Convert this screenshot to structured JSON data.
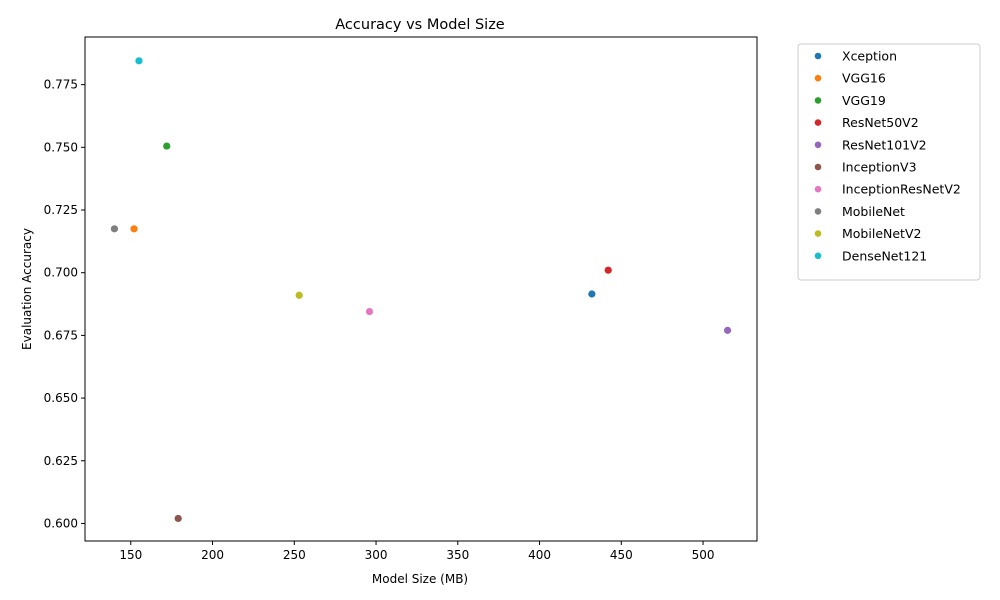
{
  "chart_data": {
    "type": "scatter",
    "title": "Accuracy vs Model Size",
    "xlabel": "Model Size (MB)",
    "ylabel": "Evaluation Accuracy",
    "xlim": [
      122,
      533
    ],
    "ylim": [
      0.593,
      0.794
    ],
    "xticks": [
      150,
      200,
      250,
      300,
      350,
      400,
      450,
      500
    ],
    "yticks": [
      0.6,
      0.625,
      0.65,
      0.675,
      0.7,
      0.725,
      0.75,
      0.775
    ],
    "grid": false,
    "legend_position": "outside-right-top",
    "series": [
      {
        "name": "Xception",
        "color": "#1f77b4",
        "x": 432,
        "y": 0.6915
      },
      {
        "name": "VGG16",
        "color": "#ff7f0e",
        "x": 152,
        "y": 0.7175
      },
      {
        "name": "VGG19",
        "color": "#2ca02c",
        "x": 172,
        "y": 0.7505
      },
      {
        "name": "ResNet50V2",
        "color": "#d62728",
        "x": 442,
        "y": 0.701
      },
      {
        "name": "ResNet101V2",
        "color": "#9467bd",
        "x": 515,
        "y": 0.677
      },
      {
        "name": "InceptionV3",
        "color": "#8c564b",
        "x": 179,
        "y": 0.602
      },
      {
        "name": "InceptionResNetV2",
        "color": "#e377c2",
        "x": 296,
        "y": 0.6845
      },
      {
        "name": "MobileNet",
        "color": "#7f7f7f",
        "x": 140,
        "y": 0.7175
      },
      {
        "name": "MobileNetV2",
        "color": "#bcbd22",
        "x": 253,
        "y": 0.691
      },
      {
        "name": "DenseNet121",
        "color": "#17becf",
        "x": 155,
        "y": 0.7845
      }
    ]
  }
}
